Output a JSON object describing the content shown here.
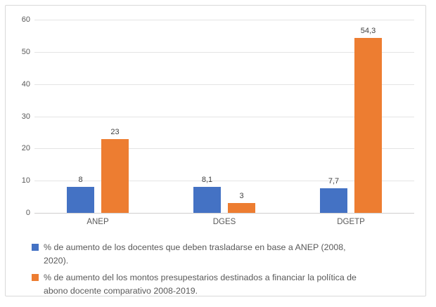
{
  "chart_data": {
    "type": "bar",
    "categories": [
      "ANEP",
      "DGES",
      "DGETP"
    ],
    "series": [
      {
        "name": "% de aumento de los docentes que deben trasladarse en base a ANEP (2008, 2020).",
        "color": "#4472C4",
        "values": [
          8,
          8.1,
          7.7
        ],
        "value_labels": [
          "8",
          "8,1",
          "7,7"
        ]
      },
      {
        "name": "% de aumento del los montos presupestarios destinados a financiar la política de abono docente comparativo 2008-2019.",
        "color": "#ED7D31",
        "values": [
          23,
          3,
          54.3
        ],
        "value_labels": [
          "23",
          "3",
          "54,3"
        ]
      }
    ],
    "title": "",
    "xlabel": "",
    "ylabel": "",
    "ylim": [
      0,
      60
    ],
    "yticks": [
      0,
      10,
      20,
      30,
      40,
      50,
      60
    ],
    "grid": true,
    "legend_position": "bottom"
  },
  "legend": {
    "items": [
      {
        "color": "#4472C4",
        "lines": [
          "% de aumento de los docentes que deben trasladarse en base a ANEP (2008,",
          "2020)."
        ]
      },
      {
        "color": "#ED7D31",
        "lines": [
          "% de aumento del los montos presupestarios destinados a financiar la política de",
          "abono docente comparativo 2008-2019."
        ]
      }
    ]
  },
  "colors": {
    "series_blue": "#4472C4",
    "series_orange": "#ED7D31",
    "axis_text": "#595959",
    "data_label_text": "#404040",
    "gridline": "#E4E4E4",
    "axis_line": "#D0CECE",
    "frame_border": "#D9D9D9",
    "background": "#FFFFFF"
  }
}
